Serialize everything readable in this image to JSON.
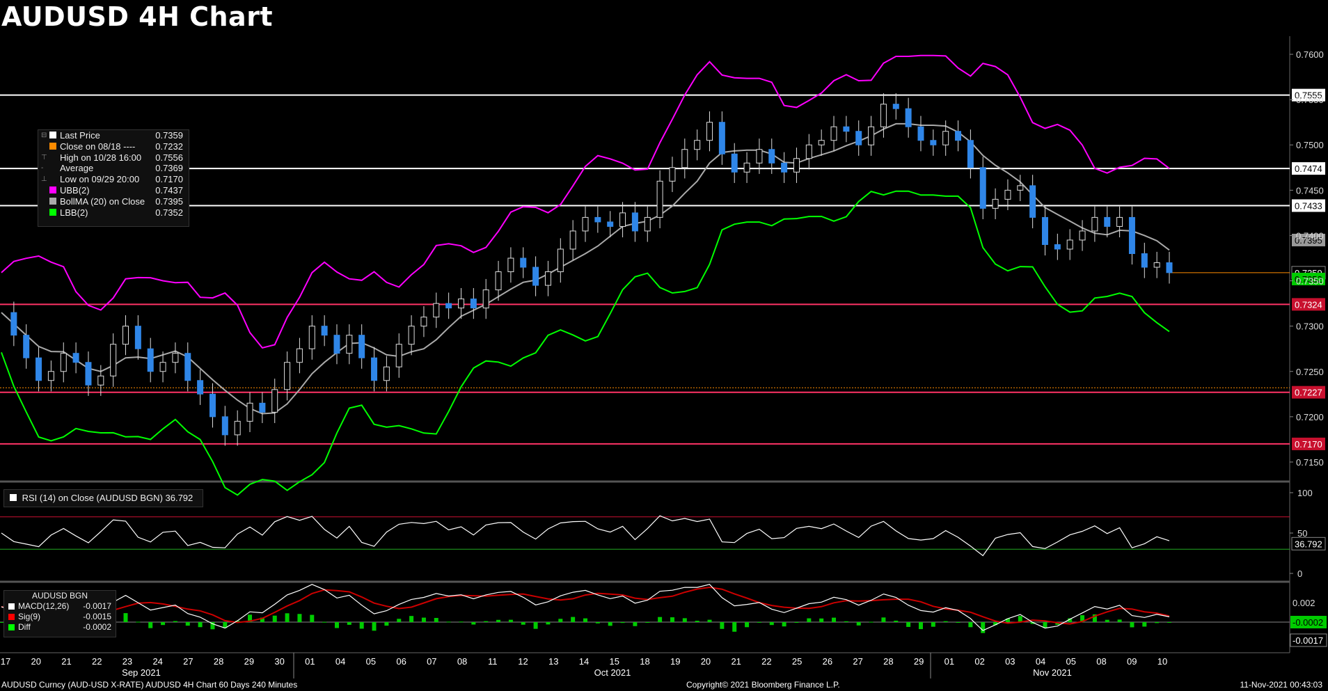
{
  "title": "AUDUSD 4H Chart",
  "legend": [
    {
      "label": "Last Price",
      "value": "0.7359",
      "color": "#ffffff",
      "mark": "⊟"
    },
    {
      "label": "Close on 08/18 ----",
      "value": "0.7232",
      "color": "#ff8c00",
      "mark": ""
    },
    {
      "label": "High on 10/28 16:00",
      "value": "0.7556",
      "color": "",
      "mark": "⊤"
    },
    {
      "label": "Average",
      "value": "0.7369",
      "color": "",
      "mark": "-"
    },
    {
      "label": "Low on 09/29 20:00",
      "value": "0.7170",
      "color": "",
      "mark": "⊥"
    },
    {
      "label": "UBB(2)",
      "value": "0.7437",
      "color": "#ff00ff",
      "mark": ""
    },
    {
      "label": "BollMA (20)  on Close",
      "value": "0.7395",
      "color": "#aaaaaa",
      "mark": ""
    },
    {
      "label": "LBB(2)",
      "value": "0.7352",
      "color": "#00ff00",
      "mark": ""
    }
  ],
  "rsi_legend": "RSI (14)  on Close (AUDUSD BGN) 36.792",
  "macd_legend": {
    "title": "AUDUSD BGN",
    "rows": [
      {
        "label": "MACD(12,26)",
        "value": "-0.0017",
        "color": "#ffffff"
      },
      {
        "label": "Sig(9)",
        "value": "-0.0015",
        "color": "#ff0000"
      },
      {
        "label": "Diff",
        "value": "-0.0002",
        "color": "#00ff00"
      }
    ]
  },
  "footer": {
    "left": "AUDUSD Curncy (AUD-USD X-RATE) AUDUSD 4H Chart 60 Days 240 Minutes",
    "center": "Copyright© 2021 Bloomberg Finance L.P.",
    "right": "11-Nov-2021 00:43:03"
  },
  "colors": {
    "candle": "#2f86e8",
    "ubb": "#ff00ff",
    "lbb": "#00ff00",
    "ma": "#aaaaaa",
    "support": "#ff3366",
    "resistance": "#ffffff",
    "last": "#ff8c00"
  },
  "chart_data": {
    "type": "candlestick",
    "price_axis": {
      "ticks": [
        "0.7600",
        "0.7550",
        "0.7500",
        "0.7450",
        "0.7400",
        "0.7350",
        "0.7300",
        "0.7250",
        "0.7200",
        "0.7150"
      ],
      "ylim": [
        0.713,
        0.762
      ]
    },
    "horizontal_lines": [
      {
        "value": 0.7555,
        "label": "0.7555",
        "kind": "resistance"
      },
      {
        "value": 0.7474,
        "label": "0.7474",
        "kind": "resistance"
      },
      {
        "value": 0.7433,
        "label": "0.7433",
        "kind": "resistance"
      },
      {
        "value": 0.7324,
        "label": "0.7324",
        "kind": "support"
      },
      {
        "value": 0.7227,
        "label": "0.7227",
        "kind": "support"
      },
      {
        "value": 0.717,
        "label": "0.7170",
        "kind": "support"
      }
    ],
    "other_axis_labels": [
      {
        "value": 0.7395,
        "label": "0.7395",
        "kind": "ma"
      },
      {
        "value": 0.7359,
        "label": "0.7359",
        "kind": "last"
      },
      {
        "value": 0.7352,
        "label": "0.7352",
        "kind": "lbb"
      }
    ],
    "close_ref": 0.7232,
    "x_labels": [
      "17",
      "20",
      "21",
      "22",
      "23",
      "24",
      "27",
      "28",
      "29",
      "30",
      "01",
      "04",
      "05",
      "06",
      "07",
      "08",
      "11",
      "12",
      "13",
      "14",
      "15",
      "18",
      "19",
      "20",
      "21",
      "22",
      "25",
      "26",
      "27",
      "28",
      "29",
      "01",
      "02",
      "03",
      "04",
      "05",
      "08",
      "09",
      "10"
    ],
    "month_labels": [
      "Sep 2021",
      "Oct 2021",
      "Nov 2021"
    ],
    "close_path": [
      [
        0,
        0.7315
      ],
      [
        1,
        0.729
      ],
      [
        2,
        0.7265
      ],
      [
        3,
        0.724
      ],
      [
        4,
        0.725
      ],
      [
        5,
        0.727
      ],
      [
        6,
        0.726
      ],
      [
        7,
        0.7235
      ],
      [
        8,
        0.7245
      ],
      [
        9,
        0.728
      ],
      [
        10,
        0.73
      ],
      [
        11,
        0.7275
      ],
      [
        12,
        0.725
      ],
      [
        13,
        0.726
      ],
      [
        14,
        0.727
      ],
      [
        15,
        0.724
      ],
      [
        16,
        0.7225
      ],
      [
        17,
        0.72
      ],
      [
        18,
        0.718
      ],
      [
        19,
        0.7195
      ],
      [
        20,
        0.7215
      ],
      [
        21,
        0.7205
      ],
      [
        22,
        0.723
      ],
      [
        23,
        0.726
      ],
      [
        24,
        0.7275
      ],
      [
        25,
        0.73
      ],
      [
        26,
        0.729
      ],
      [
        27,
        0.727
      ],
      [
        28,
        0.729
      ],
      [
        29,
        0.7265
      ],
      [
        30,
        0.724
      ],
      [
        31,
        0.7255
      ],
      [
        32,
        0.728
      ],
      [
        33,
        0.73
      ],
      [
        34,
        0.731
      ],
      [
        35,
        0.7325
      ],
      [
        36,
        0.732
      ],
      [
        37,
        0.733
      ],
      [
        38,
        0.732
      ],
      [
        39,
        0.734
      ],
      [
        40,
        0.736
      ],
      [
        41,
        0.7375
      ],
      [
        42,
        0.7365
      ],
      [
        43,
        0.7345
      ],
      [
        44,
        0.736
      ],
      [
        45,
        0.7385
      ],
      [
        46,
        0.7405
      ],
      [
        47,
        0.742
      ],
      [
        48,
        0.7415
      ],
      [
        49,
        0.741
      ],
      [
        50,
        0.7425
      ],
      [
        51,
        0.7405
      ],
      [
        52,
        0.742
      ],
      [
        53,
        0.746
      ],
      [
        54,
        0.7475
      ],
      [
        55,
        0.7495
      ],
      [
        56,
        0.7505
      ],
      [
        57,
        0.7525
      ],
      [
        58,
        0.749
      ],
      [
        59,
        0.747
      ],
      [
        60,
        0.748
      ],
      [
        61,
        0.7495
      ],
      [
        62,
        0.748
      ],
      [
        63,
        0.747
      ],
      [
        64,
        0.7485
      ],
      [
        65,
        0.75
      ],
      [
        66,
        0.7505
      ],
      [
        67,
        0.752
      ],
      [
        68,
        0.7515
      ],
      [
        69,
        0.75
      ],
      [
        70,
        0.752
      ],
      [
        71,
        0.7545
      ],
      [
        72,
        0.754
      ],
      [
        73,
        0.752
      ],
      [
        74,
        0.7505
      ],
      [
        75,
        0.75
      ],
      [
        76,
        0.7515
      ],
      [
        77,
        0.7505
      ],
      [
        78,
        0.7475
      ],
      [
        79,
        0.743
      ],
      [
        80,
        0.744
      ],
      [
        81,
        0.745
      ],
      [
        82,
        0.7455
      ],
      [
        83,
        0.742
      ],
      [
        84,
        0.739
      ],
      [
        85,
        0.7385
      ],
      [
        86,
        0.7395
      ],
      [
        87,
        0.7405
      ],
      [
        88,
        0.742
      ],
      [
        89,
        0.741
      ],
      [
        90,
        0.742
      ],
      [
        91,
        0.738
      ],
      [
        92,
        0.7365
      ],
      [
        93,
        0.737
      ],
      [
        94,
        0.7359
      ]
    ],
    "rsi": {
      "levels": [
        70,
        30
      ],
      "ticks": [
        "100",
        "50",
        "0"
      ],
      "last_label": "36.792",
      "last": 36.792
    },
    "macd": {
      "ticks": [
        "0.002",
        "-0.0002",
        "-0.0017"
      ],
      "last_labels": [
        "-0.0002",
        "-0.0017"
      ]
    }
  }
}
